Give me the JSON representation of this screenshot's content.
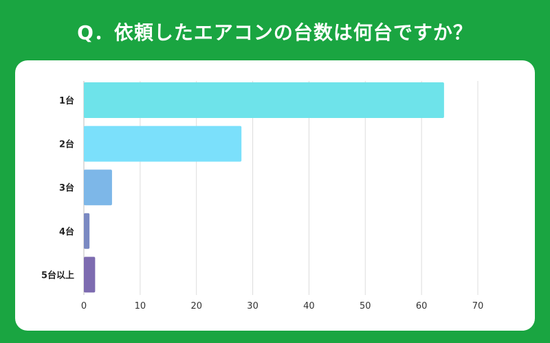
{
  "title": "Q．依頼したエアコンの台数は何台ですか？",
  "chart_data": {
    "type": "bar",
    "orientation": "horizontal",
    "title": "Q．依頼したエアコンの台数は何台ですか？",
    "categories": [
      "1台",
      "2台",
      "3台",
      "4台",
      "5台以上"
    ],
    "values": [
      64,
      28,
      5,
      1,
      2
    ],
    "colors": [
      "#6ee3ea",
      "#7be0fb",
      "#7db7e8",
      "#7a89c2",
      "#7d6bb0"
    ],
    "xlim": [
      0,
      70
    ],
    "xticks": [
      0,
      10,
      20,
      30,
      40,
      50,
      60,
      70
    ],
    "xlabel": "",
    "ylabel": "",
    "grid": true
  }
}
